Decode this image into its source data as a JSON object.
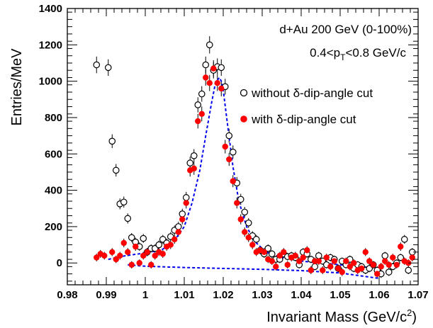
{
  "chart_data": {
    "type": "scatter",
    "annotations": {
      "line1": "d+Au 200 GeV (0-100%)",
      "line2_prefix": "0.4<p",
      "line2_sub": "T",
      "line2_suffix": "<0.8 GeV/c"
    },
    "xlabel_prefix": "Invariant Mass (GeV/c",
    "xlabel_sup": "2",
    "xlabel_suffix": ")",
    "ylabel": "Entries/MeV",
    "xlim": [
      0.98,
      1.07
    ],
    "ylim": [
      -120,
      1400
    ],
    "xticks": [
      "0.98",
      "0.99",
      "1",
      "1.01",
      "1.02",
      "1.03",
      "1.04",
      "1.05",
      "1.06",
      "1.07"
    ],
    "yticks": [
      "0",
      "200",
      "400",
      "600",
      "800",
      "1000",
      "1200",
      "1400"
    ],
    "legend": [
      {
        "label": "without δ-dip-angle cut",
        "marker": "open-circle",
        "color": "#000000"
      },
      {
        "label": "with δ-dip-angle cut",
        "marker": "filled-circle",
        "color": "#ff0000"
      }
    ],
    "series": [
      {
        "name": "without δ-dip-angle cut",
        "marker": "open-circle",
        "color": "#000000",
        "x": [
          0.9875,
          0.9905,
          0.9915,
          0.9925,
          0.9935,
          0.9945,
          0.9955,
          0.9965,
          0.9975,
          0.9985,
          0.9995,
          1.0005,
          1.0015,
          1.0025,
          1.0035,
          1.0045,
          1.0055,
          1.0065,
          1.0075,
          1.0085,
          1.0095,
          1.0105,
          1.0115,
          1.0125,
          1.0135,
          1.0145,
          1.0155,
          1.0165,
          1.0175,
          1.0185,
          1.0195,
          1.0205,
          1.0215,
          1.0225,
          1.0235,
          1.0245,
          1.0255,
          1.0265,
          1.0275,
          1.0285,
          1.0295,
          1.0305,
          1.0315,
          1.0325,
          1.0335,
          1.0345,
          1.0355,
          1.0365,
          1.0375,
          1.0385,
          1.0395,
          1.0405,
          1.0415,
          1.0425,
          1.0435,
          1.0445,
          1.0455,
          1.0465,
          1.0475,
          1.0485,
          1.0495,
          1.0505,
          1.0515,
          1.0525,
          1.0535,
          1.0545,
          1.0555,
          1.0565,
          1.0575,
          1.0585,
          1.0595,
          1.0605,
          1.0615,
          1.0625,
          1.0635,
          1.0645,
          1.0655,
          1.0665,
          1.0675,
          1.0685
        ],
        "y": [
          1090,
          1075,
          670,
          510,
          325,
          335,
          245,
          140,
          115,
          90,
          135,
          60,
          80,
          80,
          100,
          130,
          110,
          145,
          180,
          200,
          270,
          360,
          550,
          590,
          870,
          930,
          1090,
          1200,
          1060,
          1080,
          1075,
          970,
          700,
          610,
          440,
          350,
          280,
          220,
          150,
          130,
          70,
          50,
          80,
          50,
          20,
          20,
          50,
          35,
          40,
          30,
          -10,
          60,
          50,
          20,
          -20,
          40,
          10,
          -10,
          30,
          20,
          -30,
          10,
          -10,
          20,
          -30,
          -10,
          -20,
          -40,
          -30,
          -10,
          -40,
          -60,
          40,
          -50,
          -20,
          0,
          30,
          130,
          -40,
          60
        ]
      },
      {
        "name": "with δ-dip-angle cut",
        "marker": "filled-circle",
        "color": "#ff0000",
        "x": [
          0.9875,
          0.9885,
          0.9895,
          0.9915,
          0.9925,
          0.9935,
          0.9945,
          0.9955,
          0.9965,
          0.9975,
          0.9985,
          0.9995,
          1.0005,
          1.0015,
          1.0025,
          1.0035,
          1.0045,
          1.0055,
          1.0065,
          1.0075,
          1.0085,
          1.0095,
          1.0105,
          1.0115,
          1.0125,
          1.0135,
          1.0145,
          1.0155,
          1.0165,
          1.0175,
          1.0185,
          1.0195,
          1.0205,
          1.0215,
          1.0225,
          1.0235,
          1.0245,
          1.0255,
          1.0265,
          1.0275,
          1.0285,
          1.0295,
          1.0305,
          1.0315,
          1.0325,
          1.0335,
          1.0345,
          1.0355,
          1.0365,
          1.0375,
          1.0385,
          1.0395,
          1.0405,
          1.0415,
          1.0425,
          1.0435,
          1.0445,
          1.0455,
          1.0465,
          1.0475,
          1.0485,
          1.0495,
          1.0505,
          1.0515,
          1.0525,
          1.0535,
          1.0545,
          1.0555,
          1.0565,
          1.0575,
          1.0585,
          1.0595,
          1.0605,
          1.0615,
          1.0625,
          1.0635,
          1.0645,
          1.0655,
          1.0665,
          1.0675,
          1.0685
        ],
        "y": [
          30,
          50,
          40,
          60,
          20,
          40,
          110,
          60,
          -10,
          90,
          0,
          40,
          60,
          -10,
          40,
          60,
          50,
          90,
          100,
          130,
          170,
          240,
          330,
          510,
          520,
          780,
          820,
          1020,
          990,
          1070,
          990,
          960,
          640,
          570,
          450,
          330,
          240,
          170,
          140,
          100,
          60,
          70,
          60,
          20,
          10,
          -20,
          40,
          60,
          -10,
          30,
          40,
          10,
          30,
          70,
          -40,
          10,
          10,
          -40,
          30,
          -20,
          10,
          -30,
          -50,
          10,
          -20,
          0,
          -40,
          -30,
          60,
          10,
          -10,
          -60,
          -20,
          10,
          -10,
          30,
          -10,
          90,
          10,
          0,
          30
        ]
      },
      {
        "name": "",
        "style": "dashed-line",
        "color": "#0000ee",
        "x": [
          0.9905,
          0.995,
          1.0,
          1.004,
          1.007,
          1.01,
          1.012,
          1.014,
          1.0155,
          1.017,
          1.018,
          1.019,
          1.0195,
          1.02,
          1.021,
          1.0225,
          1.024,
          1.026,
          1.028,
          1.031,
          1.035,
          1.04,
          1.045,
          1.05,
          1.055,
          1.06
        ],
        "y": [
          20,
          40,
          55,
          70,
          110,
          200,
          330,
          510,
          700,
          880,
          990,
          1020,
          1000,
          950,
          780,
          530,
          340,
          200,
          120,
          60,
          30,
          10,
          0,
          -10,
          -20,
          -30
        ]
      },
      {
        "name": "",
        "style": "dashed-line",
        "color": "#0000ee",
        "x": [
          0.9955,
          1.0,
          1.01,
          1.02,
          1.03,
          1.04,
          1.05,
          1.06
        ],
        "y": [
          -10,
          -18,
          -25,
          -30,
          -35,
          -42,
          -55,
          -85
        ]
      }
    ]
  }
}
